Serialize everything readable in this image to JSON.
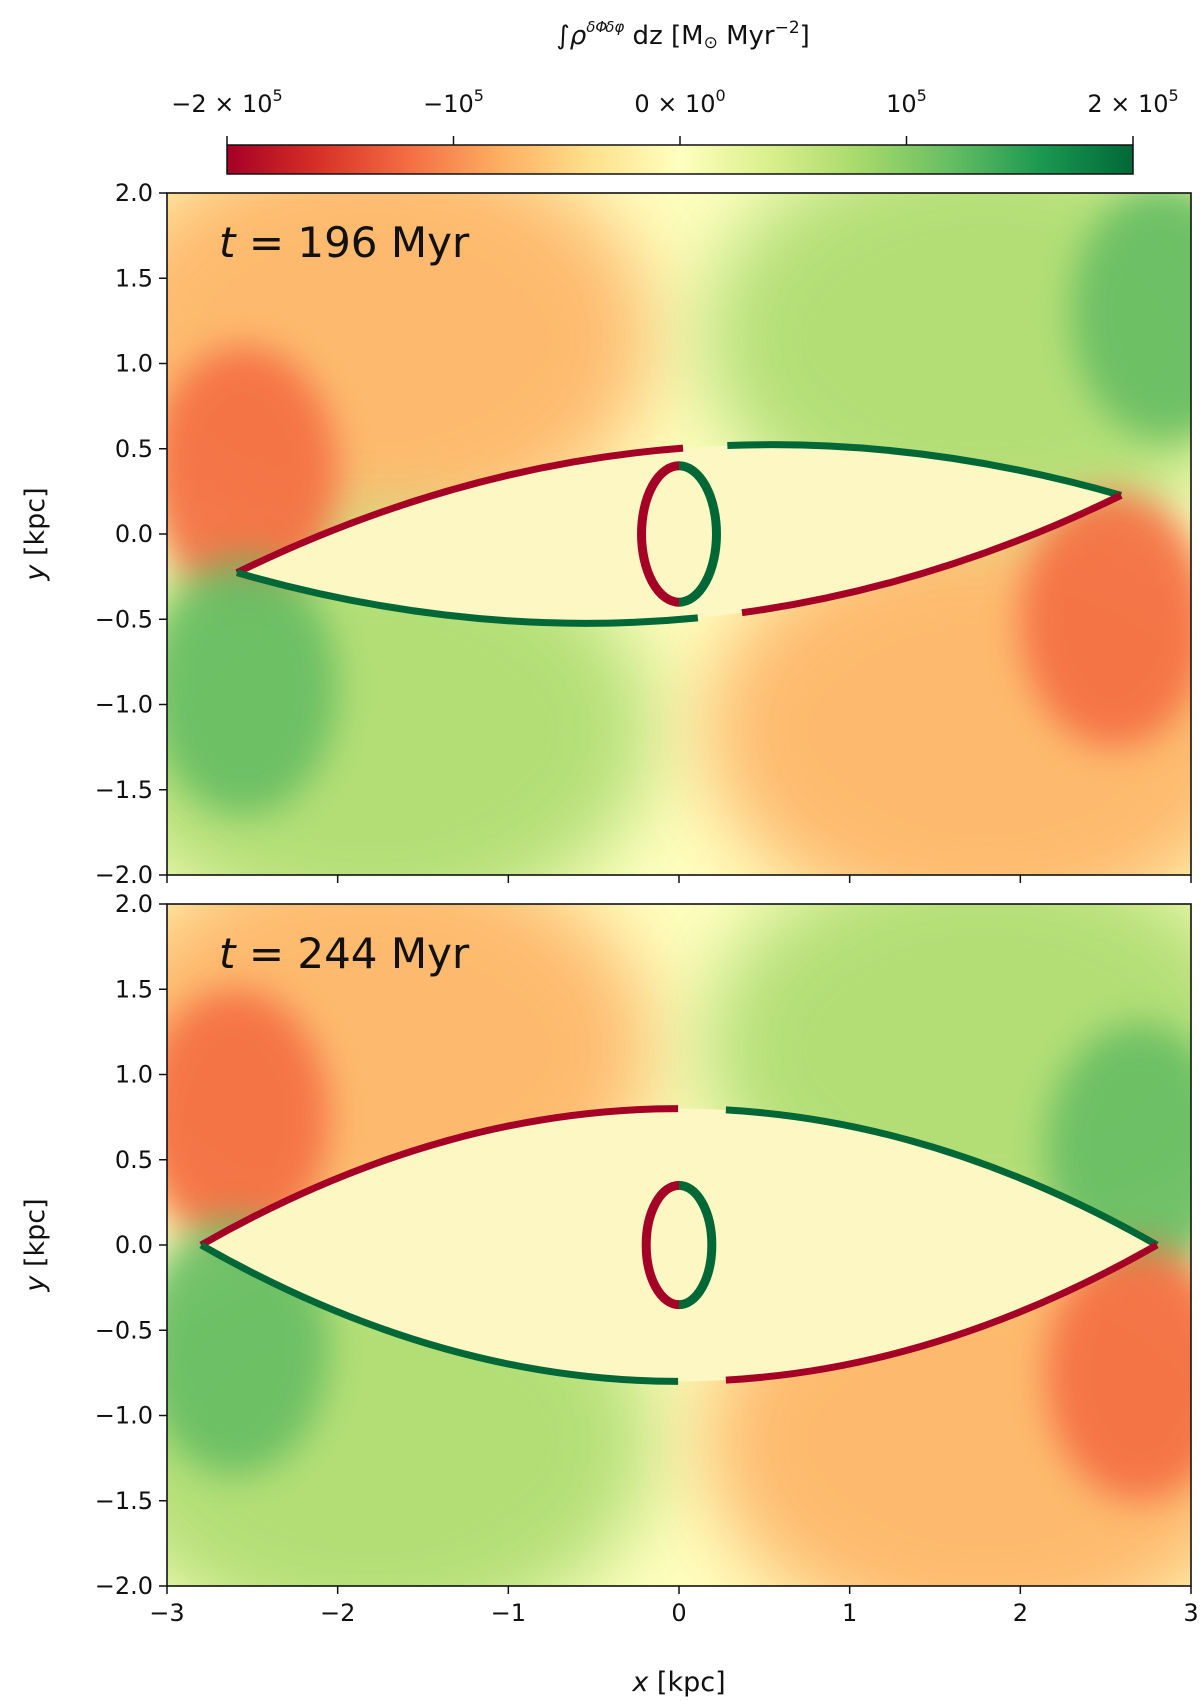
{
  "chart_data": {
    "type": "heatmap",
    "colorbar": {
      "label_prefix": "∫",
      "label_rho": "ρ",
      "label_num": "δΦ",
      "label_den": "δφ",
      "label_suffix": " dz [M",
      "label_sun": "⊙",
      "label_unit": " Myr",
      "label_exp": "−2",
      "label_close": "]",
      "vmin": -200000,
      "vmax": 200000,
      "ticks": [
        -200000,
        -100000,
        0,
        100000,
        200000
      ],
      "tick_labels": [
        {
          "main": "−2 × 10",
          "exp": "5"
        },
        {
          "main": "−10",
          "exp": "5"
        },
        {
          "main": "0 × 10",
          "exp": "0"
        },
        {
          "main": "10",
          "exp": "5"
        },
        {
          "main": "2 × 10",
          "exp": "5"
        }
      ],
      "colormap": "RdYlGn",
      "colors": [
        "#a50026",
        "#d73027",
        "#f46d43",
        "#fdae61",
        "#fee08b",
        "#ffffbf",
        "#d9ef8b",
        "#a6d96a",
        "#66bd63",
        "#1a9850",
        "#006837"
      ]
    },
    "xlabel": {
      "italic": "x",
      "rest": " [kpc]"
    },
    "ylabel": {
      "italic": "y",
      "rest": " [kpc]"
    },
    "xlim": [
      -3,
      3
    ],
    "ylim": [
      -2,
      2
    ],
    "xticks": [
      -3,
      -2,
      -1,
      0,
      1,
      2,
      3
    ],
    "xtick_labels": [
      "−3",
      "−2",
      "−1",
      "0",
      "1",
      "2",
      "3"
    ],
    "yticks": [
      2,
      1.5,
      1,
      0.5,
      0,
      -0.5,
      -1,
      -1.5,
      -2
    ],
    "ytick_labels": [
      "2.0",
      "1.5",
      "1.0",
      "0.5",
      "0.0",
      "−0.5",
      "−1.0",
      "−1.5",
      "−2.0"
    ],
    "panels": [
      {
        "label_var": "t",
        "label_text": " = 196 Myr",
        "time_myr": 196,
        "bar_half_length_kpc": 2.6,
        "bar_half_width_kpc": 0.5,
        "bar_angle_deg": -5,
        "inner_feature_radius_kpc": 0.4
      },
      {
        "label_var": "t",
        "label_text": " = 244 Myr",
        "time_myr": 244,
        "bar_half_length_kpc": 2.8,
        "bar_half_width_kpc": 0.8,
        "bar_angle_deg": 0,
        "inner_feature_radius_kpc": 0.35
      }
    ]
  }
}
